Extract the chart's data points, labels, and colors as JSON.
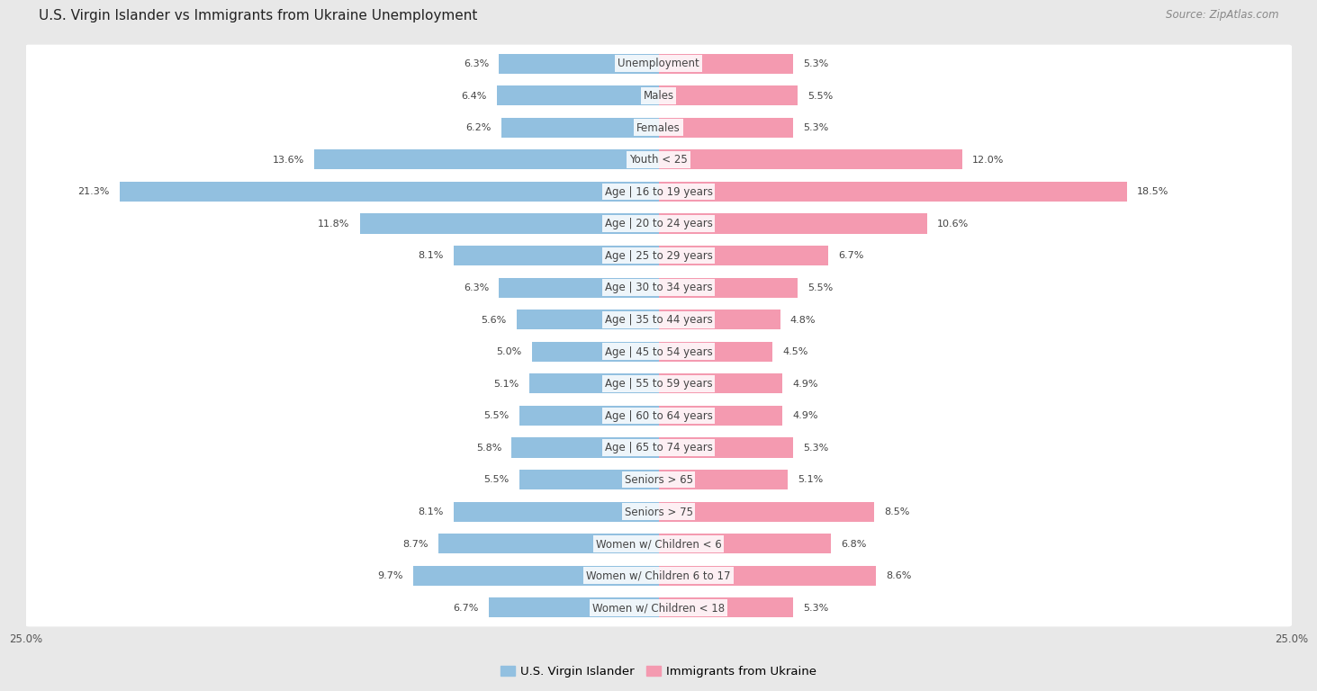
{
  "title": "U.S. Virgin Islander vs Immigrants from Ukraine Unemployment",
  "source": "Source: ZipAtlas.com",
  "categories": [
    "Unemployment",
    "Males",
    "Females",
    "Youth < 25",
    "Age | 16 to 19 years",
    "Age | 20 to 24 years",
    "Age | 25 to 29 years",
    "Age | 30 to 34 years",
    "Age | 35 to 44 years",
    "Age | 45 to 54 years",
    "Age | 55 to 59 years",
    "Age | 60 to 64 years",
    "Age | 65 to 74 years",
    "Seniors > 65",
    "Seniors > 75",
    "Women w/ Children < 6",
    "Women w/ Children 6 to 17",
    "Women w/ Children < 18"
  ],
  "left_values": [
    6.3,
    6.4,
    6.2,
    13.6,
    21.3,
    11.8,
    8.1,
    6.3,
    5.6,
    5.0,
    5.1,
    5.5,
    5.8,
    5.5,
    8.1,
    8.7,
    9.7,
    6.7
  ],
  "right_values": [
    5.3,
    5.5,
    5.3,
    12.0,
    18.5,
    10.6,
    6.7,
    5.5,
    4.8,
    4.5,
    4.9,
    4.9,
    5.3,
    5.1,
    8.5,
    6.8,
    8.6,
    5.3
  ],
  "left_color": "#92c0e0",
  "right_color": "#f49ab0",
  "left_label": "U.S. Virgin Islander",
  "right_label": "Immigrants from Ukraine",
  "axis_limit": 25.0,
  "figure_bg": "#e8e8e8",
  "row_bg": "#ffffff",
  "row_alt_bg": "#f5f5f5",
  "title_fontsize": 11,
  "label_fontsize": 8.5,
  "value_fontsize": 8,
  "source_fontsize": 8.5
}
